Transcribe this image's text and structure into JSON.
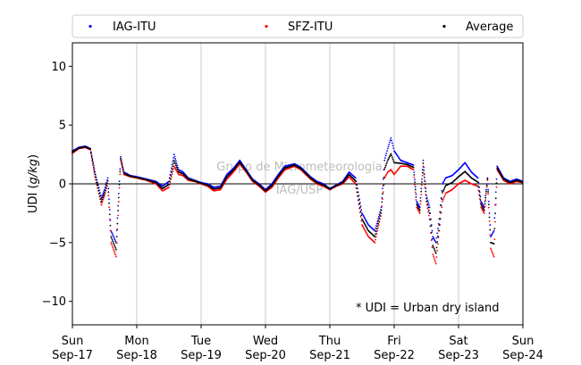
{
  "chart_data": {
    "type": "scatter",
    "ylabel": "UDI (g/kg)",
    "ylim": [
      -12,
      12
    ],
    "yticks": [
      -10,
      -5,
      0,
      5,
      10
    ],
    "xlim": [
      "2017-09-17",
      "2017-09-24"
    ],
    "xtick_labels": [
      {
        "day": "Sun",
        "date": "Sep-17"
      },
      {
        "day": "Mon",
        "date": "Sep-18"
      },
      {
        "day": "Tue",
        "date": "Sep-19"
      },
      {
        "day": "Wed",
        "date": "Sep-20"
      },
      {
        "day": "Thu",
        "date": "Sep-21"
      },
      {
        "day": "Fri",
        "date": "Sep-22"
      },
      {
        "day": "Sat",
        "date": "Sep-23"
      },
      {
        "day": "Sun",
        "date": "Sep-24"
      }
    ],
    "grid": "vertical at day boundaries",
    "zero_line": true,
    "legend_position": "top",
    "annotation": "* UDI = Urban dry island",
    "watermark": [
      "Grupo de Micrometeorologia",
      "IAG/USP"
    ],
    "x_unit": "days",
    "series": [
      {
        "name": "IAG-ITU",
        "color": "#0000ff",
        "x": [
          0,
          0.1,
          0.2,
          0.28,
          0.35,
          0.45,
          0.5,
          0.55,
          0.6,
          0.68,
          0.75,
          0.8,
          0.9,
          1.0,
          1.15,
          1.3,
          1.4,
          1.5,
          1.58,
          1.65,
          1.72,
          1.8,
          1.9,
          2.0,
          2.1,
          2.2,
          2.3,
          2.4,
          2.5,
          2.6,
          2.7,
          2.8,
          2.9,
          3.0,
          3.1,
          3.2,
          3.3,
          3.45,
          3.55,
          3.7,
          3.8,
          3.9,
          4.0,
          4.1,
          4.2,
          4.3,
          4.4,
          4.5,
          4.6,
          4.7,
          4.8,
          4.85,
          4.9,
          4.95,
          5.0,
          5.1,
          5.2,
          5.3,
          5.35,
          5.4,
          5.45,
          5.5,
          5.55,
          5.6,
          5.65,
          5.7,
          5.75,
          5.8,
          5.9,
          6.0,
          6.1,
          6.2,
          6.3,
          6.35,
          6.4,
          6.45,
          6.5,
          6.55,
          6.6,
          6.7,
          6.8,
          6.9,
          7.0
        ],
        "y": [
          2.8,
          3.1,
          3.2,
          3.0,
          1.0,
          -1.2,
          -0.5,
          0.5,
          -4.0,
          -5.0,
          2.3,
          1.0,
          0.7,
          0.6,
          0.4,
          0.2,
          -0.2,
          0.2,
          2.5,
          1.2,
          1.0,
          0.5,
          0.3,
          0.1,
          0.0,
          -0.3,
          -0.2,
          0.8,
          1.3,
          2.0,
          1.2,
          0.4,
          0.0,
          -0.5,
          0.0,
          0.8,
          1.5,
          1.7,
          1.4,
          0.6,
          0.2,
          0.0,
          -0.4,
          -0.1,
          0.2,
          1.0,
          0.5,
          -2.5,
          -3.5,
          -4.0,
          -2.0,
          2.0,
          3.0,
          3.9,
          2.8,
          2.0,
          1.8,
          1.6,
          -1.5,
          -2.0,
          2.0,
          -1.0,
          -2.0,
          -4.5,
          -5.0,
          -3.0,
          0.0,
          0.5,
          0.7,
          1.2,
          1.8,
          1.0,
          0.5,
          -1.5,
          -2.0,
          0.5,
          -4.5,
          -4.0,
          1.5,
          0.5,
          0.2,
          0.4,
          0.2
        ]
      },
      {
        "name": "SFZ-ITU",
        "color": "#ff0000",
        "x": [
          0,
          0.1,
          0.2,
          0.28,
          0.35,
          0.45,
          0.5,
          0.55,
          0.6,
          0.68,
          0.75,
          0.8,
          0.9,
          1.0,
          1.15,
          1.3,
          1.4,
          1.5,
          1.58,
          1.65,
          1.72,
          1.8,
          1.9,
          2.0,
          2.1,
          2.2,
          2.3,
          2.4,
          2.5,
          2.6,
          2.7,
          2.8,
          2.9,
          3.0,
          3.1,
          3.2,
          3.3,
          3.45,
          3.55,
          3.7,
          3.8,
          3.9,
          4.0,
          4.1,
          4.2,
          4.3,
          4.4,
          4.5,
          4.6,
          4.7,
          4.8,
          4.85,
          4.9,
          4.95,
          5.0,
          5.1,
          5.2,
          5.3,
          5.35,
          5.4,
          5.45,
          5.5,
          5.55,
          5.6,
          5.65,
          5.7,
          5.75,
          5.8,
          5.9,
          6.0,
          6.1,
          6.2,
          6.3,
          6.35,
          6.4,
          6.45,
          6.5,
          6.55,
          6.6,
          6.7,
          6.8,
          6.9,
          7.0
        ],
        "y": [
          2.6,
          3.0,
          3.1,
          2.9,
          0.6,
          -1.8,
          -1.0,
          0.0,
          -5.0,
          -6.2,
          2.0,
          0.8,
          0.6,
          0.5,
          0.3,
          0.0,
          -0.6,
          -0.3,
          1.5,
          0.8,
          0.7,
          0.3,
          0.2,
          0.0,
          -0.2,
          -0.6,
          -0.5,
          0.4,
          1.0,
          1.7,
          1.0,
          0.2,
          -0.2,
          -0.7,
          -0.3,
          0.5,
          1.2,
          1.5,
          1.2,
          0.4,
          0.0,
          -0.2,
          -0.5,
          -0.2,
          0.0,
          0.6,
          0.0,
          -3.5,
          -4.5,
          -5.0,
          -2.5,
          0.5,
          1.0,
          1.2,
          0.8,
          1.5,
          1.5,
          1.2,
          -2.0,
          -2.5,
          1.5,
          -1.5,
          -3.0,
          -6.0,
          -6.8,
          -4.0,
          -1.5,
          -0.8,
          -0.5,
          0.0,
          0.3,
          0.0,
          -0.2,
          -2.0,
          -2.5,
          0.3,
          -5.5,
          -6.2,
          1.2,
          0.3,
          0.0,
          0.2,
          0.1
        ]
      },
      {
        "name": "Average",
        "color": "#000000",
        "x": [
          0,
          0.1,
          0.2,
          0.28,
          0.35,
          0.45,
          0.5,
          0.55,
          0.6,
          0.68,
          0.75,
          0.8,
          0.9,
          1.0,
          1.15,
          1.3,
          1.4,
          1.5,
          1.58,
          1.65,
          1.72,
          1.8,
          1.9,
          2.0,
          2.1,
          2.2,
          2.3,
          2.4,
          2.5,
          2.6,
          2.7,
          2.8,
          2.9,
          3.0,
          3.1,
          3.2,
          3.3,
          3.45,
          3.55,
          3.7,
          3.8,
          3.9,
          4.0,
          4.1,
          4.2,
          4.3,
          4.4,
          4.5,
          4.6,
          4.7,
          4.8,
          4.85,
          4.9,
          4.95,
          5.0,
          5.1,
          5.2,
          5.3,
          5.35,
          5.4,
          5.45,
          5.5,
          5.55,
          5.6,
          5.65,
          5.7,
          5.75,
          5.8,
          5.9,
          6.0,
          6.1,
          6.2,
          6.3,
          6.35,
          6.4,
          6.45,
          6.5,
          6.55,
          6.6,
          6.7,
          6.8,
          6.9,
          7.0
        ],
        "y": [
          2.7,
          3.05,
          3.15,
          2.95,
          0.8,
          -1.5,
          -0.75,
          0.25,
          -4.5,
          -5.6,
          2.15,
          0.9,
          0.65,
          0.55,
          0.35,
          0.1,
          -0.4,
          -0.05,
          2.0,
          1.0,
          0.85,
          0.4,
          0.25,
          0.05,
          -0.1,
          -0.45,
          -0.35,
          0.6,
          1.15,
          1.85,
          1.1,
          0.3,
          -0.1,
          -0.6,
          -0.15,
          0.65,
          1.35,
          1.6,
          1.3,
          0.5,
          0.1,
          -0.1,
          -0.45,
          -0.15,
          0.1,
          0.8,
          0.25,
          -3.0,
          -4.0,
          -4.5,
          -2.25,
          1.25,
          2.0,
          2.55,
          1.8,
          1.75,
          1.65,
          1.4,
          -1.75,
          -2.25,
          1.75,
          -1.25,
          -2.5,
          -5.25,
          -5.9,
          -3.5,
          -0.75,
          -0.15,
          0.1,
          0.6,
          1.05,
          0.5,
          0.15,
          -1.75,
          -2.25,
          0.4,
          -5.0,
          -5.1,
          1.35,
          0.4,
          0.1,
          0.3,
          0.15
        ]
      }
    ]
  }
}
